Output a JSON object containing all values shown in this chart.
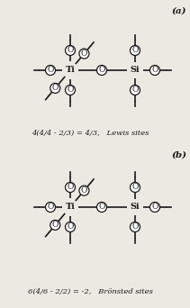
{
  "fig_width": 2.11,
  "fig_height": 3.42,
  "dpi": 100,
  "bg_color": "#ece9e3",
  "line_color": "#1a1a1a",
  "text_color": "#1a1a1a",
  "lw": 1.2,
  "font_size_atom": 7.0,
  "font_size_O": 6.5,
  "font_size_formula": 6.0,
  "font_size_ab": 7.5,
  "label_a": "(a)",
  "label_b": "(b)",
  "formula_a": "4(4/4 - 2/3) = 4/3,   Lewis sites",
  "formula_b": "6(4/6 - 2/2) = -2,   Brönsted sites"
}
